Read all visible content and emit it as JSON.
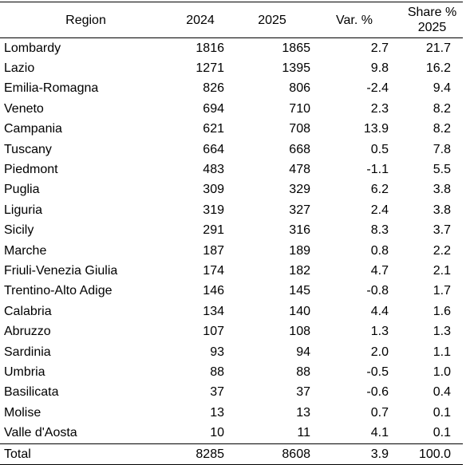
{
  "table": {
    "header": [
      "Region",
      "2024",
      "2025",
      "Var. %",
      "Share % 2025"
    ],
    "rows": [
      [
        "Lombardy",
        "1816",
        "1865",
        "2.7",
        "21.7"
      ],
      [
        "Lazio",
        "1271",
        "1395",
        "9.8",
        "16.2"
      ],
      [
        "Emilia-Romagna",
        "826",
        "806",
        "-2.4",
        "9.4"
      ],
      [
        "Veneto",
        "694",
        "710",
        "2.3",
        "8.2"
      ],
      [
        "Campania",
        "621",
        "708",
        "13.9",
        "8.2"
      ],
      [
        "Tuscany",
        "664",
        "668",
        "0.5",
        "7.8"
      ],
      [
        "Piedmont",
        "483",
        "478",
        "-1.1",
        "5.5"
      ],
      [
        "Puglia",
        "309",
        "329",
        "6.2",
        "3.8"
      ],
      [
        "Liguria",
        "319",
        "327",
        "2.4",
        "3.8"
      ],
      [
        "Sicily",
        "291",
        "316",
        "8.3",
        "3.7"
      ],
      [
        "Marche",
        "187",
        "189",
        "0.8",
        "2.2"
      ],
      [
        "Friuli-Venezia Giulia",
        "174",
        "182",
        "4.7",
        "2.1"
      ],
      [
        "Trentino-Alto Adige",
        "146",
        "145",
        "-0.8",
        "1.7"
      ],
      [
        "Calabria",
        "134",
        "140",
        "4.4",
        "1.6"
      ],
      [
        "Abruzzo",
        "107",
        "108",
        "1.3",
        "1.3"
      ],
      [
        "Sardinia",
        "93",
        "94",
        "2.0",
        "1.1"
      ],
      [
        "Umbria",
        "88",
        "88",
        "-0.5",
        "1.0"
      ],
      [
        "Basilicata",
        "37",
        "37",
        "-0.6",
        "0.4"
      ],
      [
        "Molise",
        "13",
        "13",
        "0.7",
        "0.1"
      ],
      [
        "Valle d'Aosta",
        "10",
        "11",
        "4.1",
        "0.1"
      ]
    ],
    "total": [
      "Total",
      "8285",
      "8608",
      "3.9",
      "100.0"
    ]
  }
}
